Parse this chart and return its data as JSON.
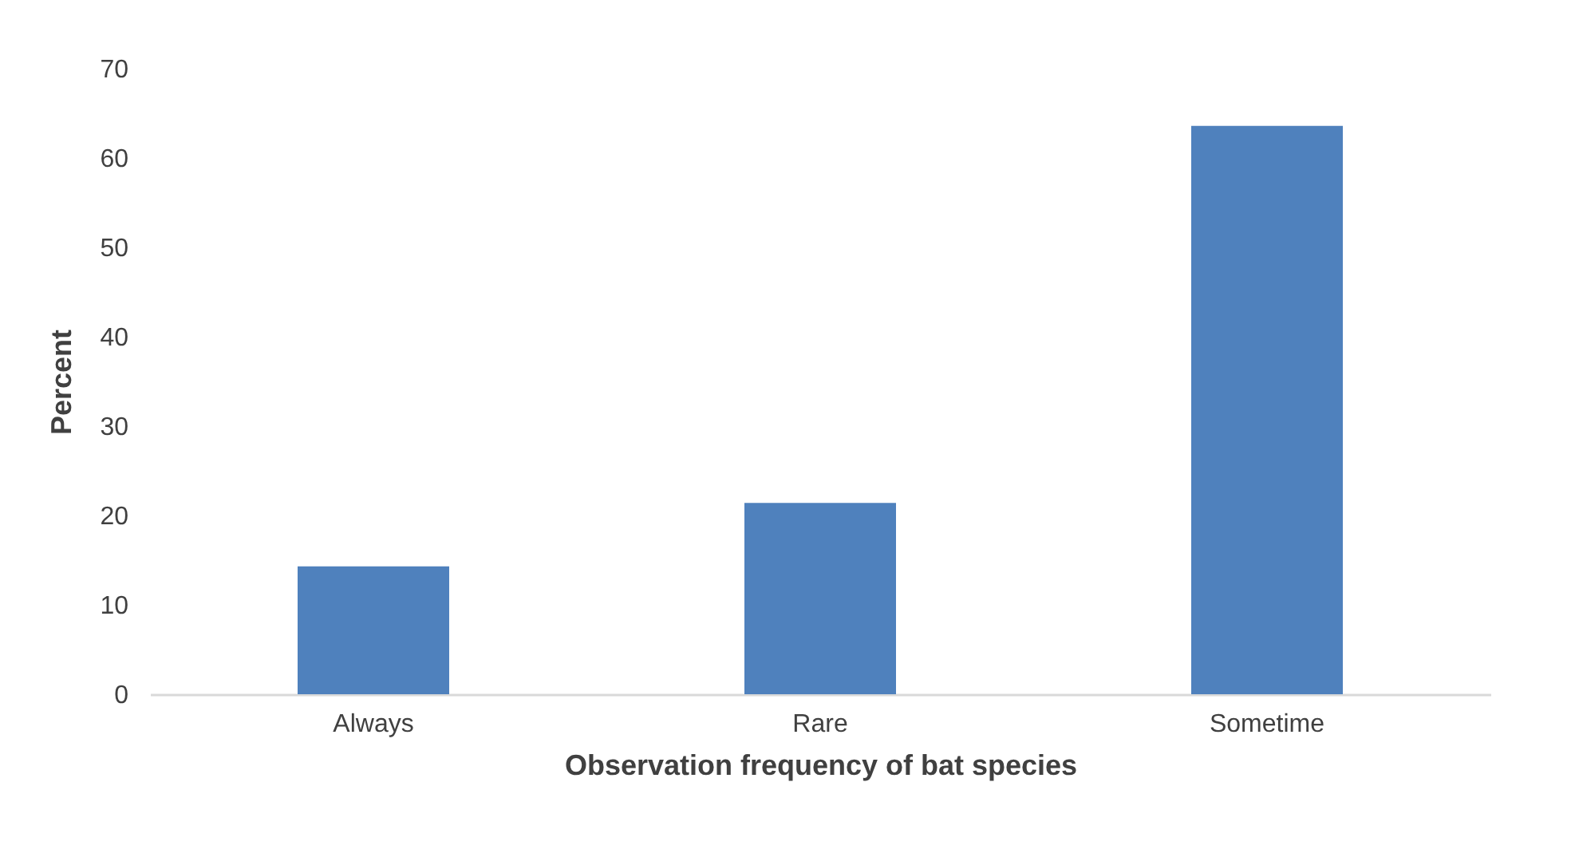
{
  "chart_data": {
    "type": "bar",
    "xlabel": "Observation frequency of bat species",
    "ylabel": "Percent",
    "categories": [
      "Always",
      "Rare",
      "Sometime"
    ],
    "values": [
      14.3,
      21.4,
      63.6
    ],
    "color": "#4f81bd",
    "ylim": [
      0,
      70
    ],
    "yticks": [
      0,
      10,
      20,
      30,
      40,
      50,
      60,
      70
    ],
    "grid": false
  }
}
